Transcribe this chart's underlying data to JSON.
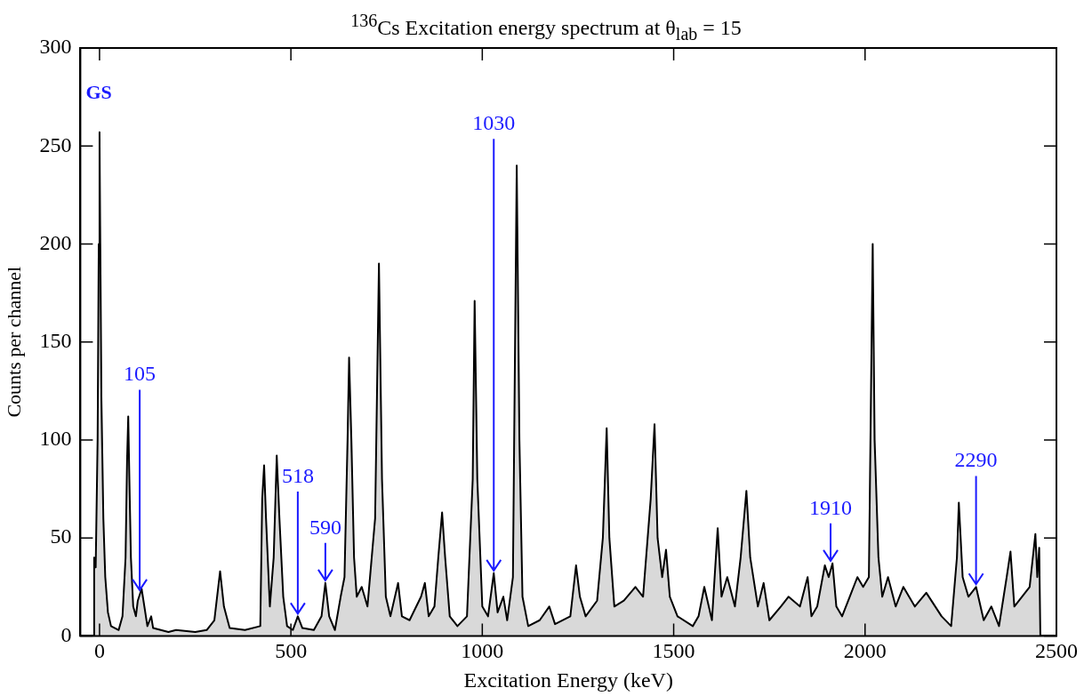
{
  "chart_data": {
    "type": "area",
    "title": "$^{136}$Cs Excitation energy spectrum at θ$_{lab}$ = 15",
    "xlabel": "Excitation Energy (keV)",
    "ylabel": "Counts per channel",
    "xlim": [
      -50,
      2500
    ],
    "xticks": [
      0,
      500,
      1000,
      1500,
      2000,
      2500
    ],
    "ylim": [
      0,
      300
    ],
    "yticks": [
      0,
      50,
      100,
      150,
      200,
      250,
      300
    ],
    "grid": false,
    "legend": false,
    "marker": "none",
    "annotations": [
      "GS",
      {
        "text": "105",
        "x": 105,
        "y": 22
      },
      {
        "text": "518",
        "x": 518,
        "y": 10
      },
      {
        "text": "590",
        "x": 590,
        "y": 27
      },
      {
        "text": "1030",
        "x": 1030,
        "y": 32
      },
      {
        "text": "1910",
        "x": 1910,
        "y": 37
      },
      {
        "text": "2290",
        "x": 2290,
        "y": 25
      }
    ],
    "series": [
      {
        "color": "#000000",
        "x": [
          -16,
          -14,
          -10,
          -5,
          -2,
          0,
          2,
          5,
          10,
          15,
          22,
          30,
          40,
          50,
          60,
          68,
          72,
          75,
          78,
          82,
          88,
          95,
          100,
          110,
          118,
          125,
          135,
          140,
          160,
          180,
          200,
          250,
          280,
          300,
          315,
          325,
          340,
          380,
          420,
          425,
          430,
          435,
          445,
          455,
          463,
          470,
          480,
          490,
          505,
          518,
          530,
          560,
          580,
          590,
          600,
          615,
          630,
          640,
          648,
          652,
          658,
          665,
          672,
          685,
          700,
          720,
          730,
          738,
          748,
          760,
          780,
          790,
          810,
          840,
          850,
          860,
          875,
          885,
          895,
          903,
          915,
          935,
          960,
          975,
          980,
          987,
          1000,
          1015,
          1030,
          1040,
          1055,
          1065,
          1080,
          1090,
          1097,
          1105,
          1120,
          1150,
          1175,
          1190,
          1230,
          1245,
          1255,
          1270,
          1300,
          1315,
          1325,
          1332,
          1345,
          1370,
          1400,
          1420,
          1440,
          1450,
          1458,
          1470,
          1480,
          1490,
          1510,
          1550,
          1565,
          1580,
          1600,
          1615,
          1625,
          1640,
          1660,
          1675,
          1690,
          1700,
          1720,
          1735,
          1750,
          1780,
          1800,
          1830,
          1850,
          1860,
          1875,
          1895,
          1905,
          1915,
          1925,
          1940,
          1960,
          1980,
          1995,
          2010,
          2020,
          2025,
          2035,
          2045,
          2060,
          2080,
          2100,
          2130,
          2160,
          2200,
          2225,
          2240,
          2245,
          2255,
          2270,
          2290,
          2310,
          2330,
          2350,
          2370,
          2380,
          2390,
          2410,
          2430,
          2445,
          2450,
          2455,
          2458
        ],
        "values": [
          0,
          40,
          35,
          100,
          200,
          257,
          200,
          120,
          60,
          30,
          12,
          5,
          4,
          3,
          10,
          40,
          90,
          112,
          80,
          40,
          15,
          10,
          18,
          24,
          14,
          5,
          10,
          4,
          3,
          2,
          3,
          2,
          3,
          8,
          33,
          15,
          4,
          3,
          5,
          70,
          87,
          60,
          15,
          40,
          92,
          60,
          20,
          5,
          3,
          10,
          4,
          3,
          10,
          27,
          10,
          3,
          20,
          30,
          100,
          142,
          100,
          40,
          20,
          25,
          15,
          60,
          190,
          80,
          20,
          10,
          27,
          10,
          8,
          20,
          27,
          10,
          15,
          40,
          63,
          40,
          10,
          5,
          10,
          80,
          171,
          80,
          15,
          10,
          32,
          12,
          20,
          8,
          30,
          240,
          100,
          20,
          5,
          8,
          15,
          6,
          10,
          36,
          20,
          10,
          18,
          50,
          106,
          50,
          15,
          18,
          25,
          20,
          70,
          108,
          50,
          30,
          44,
          20,
          10,
          5,
          10,
          25,
          8,
          55,
          20,
          30,
          15,
          40,
          74,
          40,
          15,
          27,
          8,
          15,
          20,
          15,
          30,
          10,
          15,
          36,
          30,
          37,
          15,
          10,
          20,
          30,
          25,
          30,
          200,
          100,
          40,
          20,
          30,
          15,
          25,
          15,
          22,
          10,
          5,
          40,
          68,
          30,
          20,
          25,
          8,
          15,
          5,
          30,
          43,
          15,
          20,
          25,
          52,
          30,
          45,
          0
        ]
      }
    ]
  }
}
